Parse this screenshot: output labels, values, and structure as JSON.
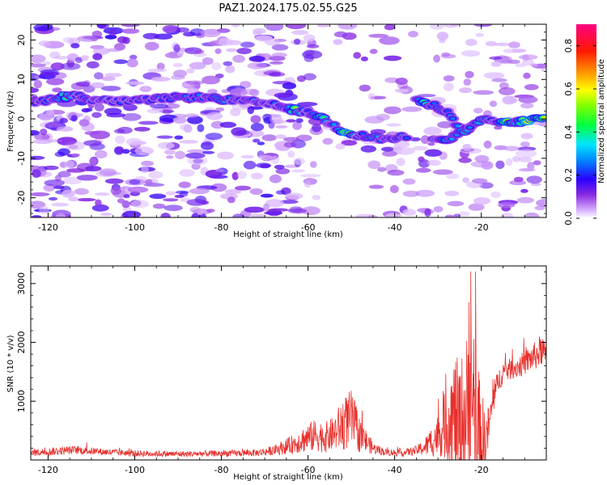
{
  "title": "PAZ1.2024.175.02.55.G25",
  "chart_data": [
    {
      "type": "heatmap",
      "xlabel": "Height of straight line (km)",
      "ylabel": "Frequency (Hz)",
      "xlim": [
        -124,
        -5
      ],
      "ylim": [
        -25,
        24
      ],
      "xticks": [
        -120,
        -100,
        -80,
        -60,
        -40,
        -20
      ],
      "yticks": [
        -20,
        -10,
        0,
        10,
        20
      ],
      "colorbar": {
        "label": "Normalized spectral amplitude",
        "range": [
          0,
          0.9
        ],
        "ticks": [
          0.0,
          0.2,
          0.4,
          0.6,
          0.8
        ],
        "colormap": "hsv-rainbow"
      },
      "ridge": {
        "x": [
          -123,
          -118,
          -114,
          -110,
          -105,
          -100,
          -95,
          -90,
          -85,
          -80,
          -75,
          -70,
          -66,
          -62,
          -58,
          -55,
          -52,
          -49,
          -46,
          -43,
          -40,
          -37
        ],
        "y": [
          4,
          5.5,
          6,
          5,
          4.5,
          4.5,
          5,
          5.5,
          5.5,
          5,
          4.5,
          4,
          3,
          2,
          1,
          -1,
          -3,
          -4,
          -4.5,
          -5,
          -5,
          -4.5
        ]
      },
      "ridge2": {
        "x": [
          -35,
          -31,
          -28,
          -25,
          -22,
          -19,
          -16,
          -13,
          -10,
          -7,
          -5
        ],
        "y": [
          4.5,
          3.5,
          2,
          -3,
          -2,
          0,
          -1,
          -1,
          -0.5,
          0,
          0.5
        ]
      },
      "ridge3": {
        "x": [
          -31,
          -28,
          -25,
          -22
        ],
        "y": [
          -5.5,
          -5.5,
          -3.5,
          -2
        ]
      }
    },
    {
      "type": "line",
      "xlabel": "Height of straight line (km)",
      "ylabel": "SNR (10 * v/v)",
      "xlim": [
        -124,
        -5
      ],
      "ylim": [
        0,
        3300
      ],
      "xticks": [
        -120,
        -100,
        -80,
        -60,
        -40,
        -20
      ],
      "yticks": [
        1000,
        2000,
        3000
      ],
      "color": "#e8302c",
      "envelope": {
        "x": [
          -124,
          -118,
          -114,
          -108,
          -100,
          -90,
          -80,
          -72,
          -68,
          -64,
          -60,
          -58,
          -56,
          -54,
          -52,
          -50,
          -48,
          -45,
          -42,
          -38,
          -35,
          -33,
          -31,
          -29,
          -28,
          -27,
          -26,
          -25,
          -24,
          -23,
          -22,
          -21,
          -20,
          -19,
          -18,
          -17,
          -16,
          -15,
          -13,
          -11,
          -9,
          -7,
          -6,
          -5
        ],
        "base": [
          120,
          150,
          170,
          140,
          110,
          100,
          110,
          120,
          160,
          250,
          380,
          420,
          380,
          450,
          600,
          700,
          420,
          200,
          130,
          120,
          160,
          220,
          350,
          500,
          650,
          700,
          650,
          600,
          700,
          750,
          600,
          450,
          350,
          300,
          700,
          1100,
          1350,
          1500,
          1550,
          1600,
          1700,
          1800,
          1900,
          1700
        ],
        "amp": [
          60,
          70,
          70,
          60,
          55,
          50,
          55,
          60,
          80,
          150,
          250,
          280,
          260,
          300,
          450,
          500,
          300,
          100,
          60,
          60,
          80,
          150,
          300,
          450,
          700,
          1000,
          1200,
          1000,
          1300,
          1500,
          1600,
          1300,
          900,
          500,
          300,
          250,
          200,
          200,
          180,
          200,
          220,
          250,
          300,
          200
        ]
      }
    }
  ]
}
